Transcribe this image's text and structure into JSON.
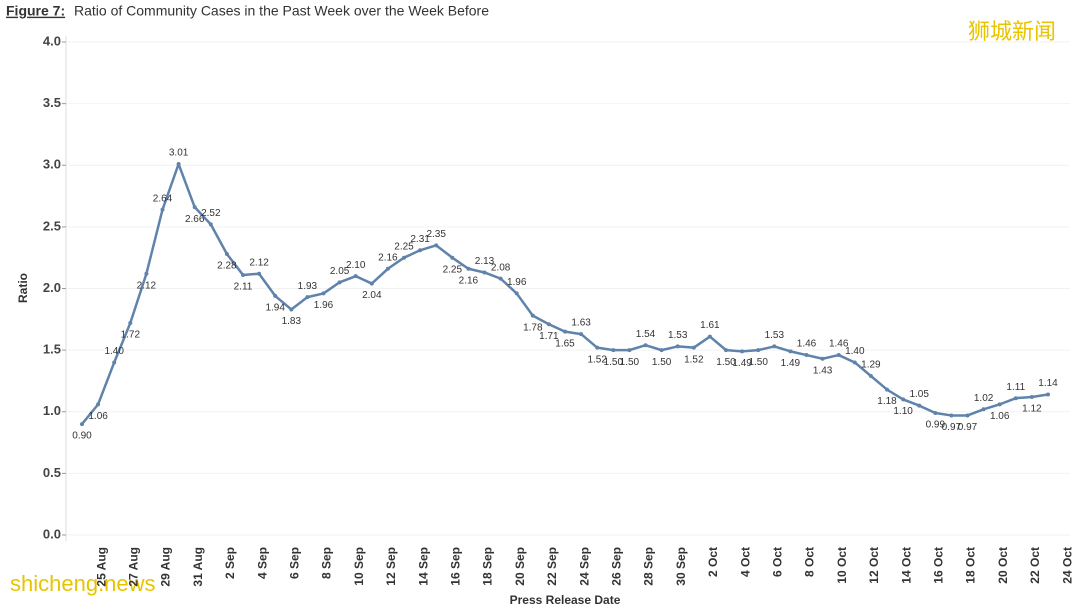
{
  "chart_data": {
    "type": "line",
    "figure_label": "Figure 7:",
    "title": "Ratio of Community Cases in the Past Week over the Week Before",
    "x_label": "Press Release Date",
    "y_label": "Ratio",
    "watermarks": [
      "狮城新闻",
      "shicheng.news"
    ],
    "categories": [
      null,
      "25 Aug",
      null,
      "27 Aug",
      null,
      "29 Aug",
      null,
      "31 Aug",
      null,
      "2 Sep",
      null,
      "4 Sep",
      null,
      "6 Sep",
      null,
      "8 Sep",
      null,
      "10 Sep",
      null,
      "12 Sep",
      null,
      "14 Sep",
      null,
      "16 Sep",
      null,
      "18 Sep",
      null,
      "20 Sep",
      null,
      "22 Sep",
      null,
      "24 Sep",
      null,
      "26 Sep",
      null,
      "28 Sep",
      null,
      "30 Sep",
      null,
      "2 Oct",
      null,
      "4 Oct",
      null,
      "6 Oct",
      null,
      "8 Oct",
      null,
      "10 Oct",
      null,
      "12 Oct",
      null,
      "14 Oct",
      null,
      "16 Oct",
      null,
      "18 Oct",
      null,
      "20 Oct",
      null,
      "22 Oct",
      null,
      "24 Oct"
    ],
    "series": [
      {
        "name": "Ratio",
        "color": "#5f83aa",
        "values": [
          0.9,
          1.06,
          1.4,
          1.72,
          2.12,
          2.64,
          3.01,
          2.66,
          2.52,
          2.28,
          2.11,
          2.12,
          1.94,
          1.83,
          1.93,
          1.96,
          2.05,
          2.1,
          2.04,
          2.16,
          2.25,
          2.31,
          2.35,
          2.25,
          2.16,
          2.13,
          2.08,
          1.96,
          1.78,
          1.71,
          1.65,
          1.63,
          1.52,
          1.5,
          1.5,
          1.54,
          1.5,
          1.53,
          1.52,
          1.61,
          1.5,
          1.49,
          1.5,
          1.53,
          1.49,
          1.46,
          1.43,
          1.46,
          1.4,
          1.29,
          1.18,
          1.1,
          1.05,
          0.99,
          0.97,
          0.97,
          1.02,
          1.06,
          1.11,
          1.12,
          1.14,
          null
        ],
        "value_labels": [
          "0.90",
          "1.06",
          "1.40",
          "1.72",
          "2.12",
          "2.64",
          "3.01",
          "2.66",
          "2.52",
          "2.28",
          "2.11",
          "2.12",
          "1.94",
          "1.83",
          "1.93",
          "1.96",
          "2.05",
          "2.10",
          "2.04",
          "2.16",
          "2.25",
          "2.31",
          "2.35",
          "2.25",
          "2.16",
          "2.13",
          "2.08",
          "1.96",
          "1.78",
          "1.71",
          "1.65",
          "1.63",
          "1.52",
          "1.50",
          "1.50",
          "1.54",
          "1.50",
          "1.53",
          "1.52",
          "1.61",
          "1.50",
          "1.49",
          "1.50",
          "1.53",
          "1.49",
          "1.46",
          "1.43",
          "1.46",
          "1.40",
          "1.29",
          "1.18",
          "1.10",
          "1.05",
          "0.99",
          "0.97",
          "0.97",
          "1.02",
          "1.06",
          "1.11",
          "1.12",
          "1.14",
          null
        ]
      }
    ],
    "ylim": [
      0,
      4
    ],
    "yticks": [
      {
        "value": 0,
        "label": "0.0"
      },
      {
        "value": 0.5,
        "label": "0.5"
      },
      {
        "value": 1,
        "label": "1.0"
      },
      {
        "value": 1.5,
        "label": "1.5"
      },
      {
        "value": 2,
        "label": "2.0"
      },
      {
        "value": 2.5,
        "label": "2.5"
      },
      {
        "value": 3,
        "label": "3.0"
      },
      {
        "value": 3.5,
        "label": "3.5"
      },
      {
        "value": 4,
        "label": "4.0"
      }
    ],
    "grid": true
  }
}
